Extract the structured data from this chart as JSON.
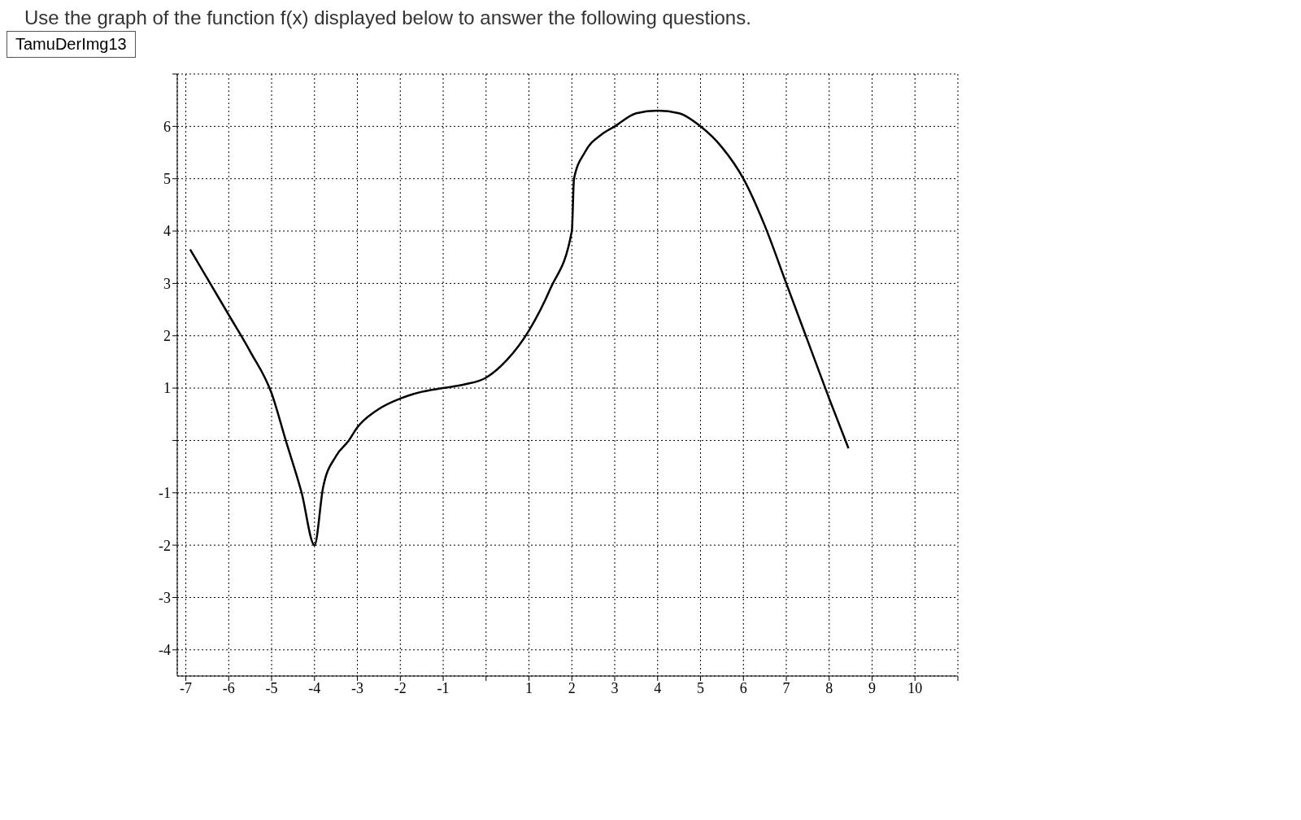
{
  "chart_data": {
    "type": "line",
    "title": "Use the graph of the function f(x) displayed below to answer the following questions.",
    "annotations": [
      "TamuDerImg13"
    ],
    "x": [
      -6.9,
      -6,
      -5.5,
      -5,
      -4.67,
      -4.3,
      -4,
      -3.8,
      -3.5,
      -3.2,
      -3,
      -2.5,
      -2,
      -1.5,
      -1,
      -0.5,
      0,
      0.5,
      1,
      1.5,
      2,
      2.05,
      2.3,
      2.7,
      3,
      3.5,
      4,
      4.5,
      5,
      5.5,
      6,
      6.5,
      7,
      7.5,
      8,
      8.45
    ],
    "series": [
      {
        "color": "#000000",
        "values": [
          3.65,
          2.4,
          1.7,
          0.9,
          0,
          -1,
          -2,
          -0.9,
          -0.3,
          0,
          0.25,
          0.6,
          0.8,
          0.93,
          1,
          1.07,
          1.2,
          1.55,
          2.1,
          2.9,
          4,
          5,
          5.5,
          5.85,
          6,
          6.25,
          6.3,
          6.25,
          6,
          5.6,
          5,
          4.1,
          3,
          1.9,
          0.8,
          -0.15
        ]
      }
    ],
    "xlim": [
      -7.2,
      11
    ],
    "xticks": [
      -7,
      -6,
      -5,
      -4,
      -3,
      -2,
      -1,
      {
        "value": 0,
        "label": null
      },
      1,
      2,
      3,
      4,
      5,
      6,
      7,
      8,
      9,
      10,
      {
        "value": 11,
        "label": null
      }
    ],
    "ylim": [
      -4.5,
      7
    ],
    "yticks": [
      -4,
      -3,
      -2,
      -1,
      {
        "value": 0,
        "label": null
      },
      1,
      2,
      3,
      4,
      5,
      6,
      {
        "value": 7,
        "label": null
      }
    ],
    "grid": true,
    "marker": "none",
    "line_style": "solid",
    "legend": false
  }
}
